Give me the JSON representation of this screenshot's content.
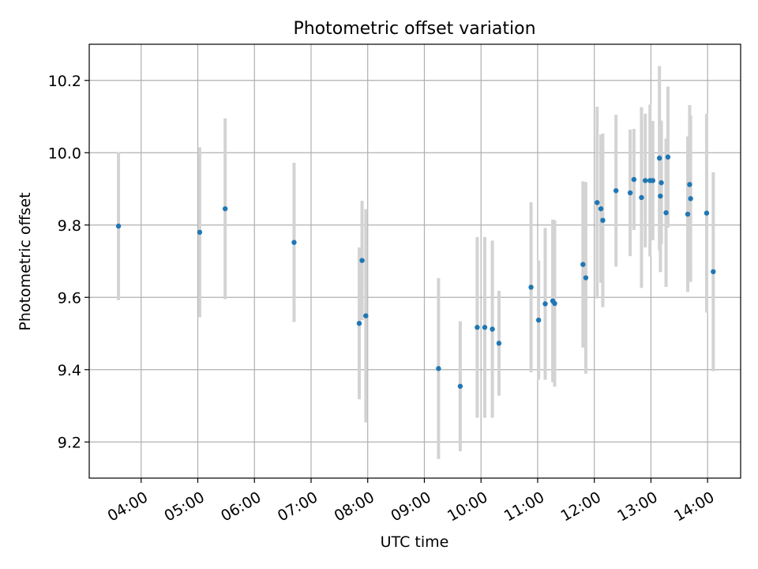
{
  "chart_data": {
    "type": "scatter",
    "title": "Photometric offset variation",
    "xlabel": "UTC time",
    "ylabel": "Photometric offset",
    "x_ticks": [
      "04:00",
      "05:00",
      "06:00",
      "07:00",
      "08:00",
      "09:00",
      "10:00",
      "11:00",
      "12:00",
      "13:00",
      "14:00"
    ],
    "x_range": [
      "03:05",
      "14:35"
    ],
    "y_ticks": [
      "9.2",
      "9.4",
      "9.6",
      "9.8",
      "10.0",
      "10.2"
    ],
    "ylim": [
      9.1,
      10.3
    ],
    "grid": true,
    "colors": {
      "point": "#1f77b4",
      "errorbar": "#d3d3d3",
      "grid": "#b0b0b0"
    },
    "points": [
      {
        "t": "03:36",
        "y": 9.797,
        "err": 0.205
      },
      {
        "t": "05:02",
        "y": 9.78,
        "err": 0.235
      },
      {
        "t": "05:29",
        "y": 9.845,
        "err": 0.25
      },
      {
        "t": "06:42",
        "y": 9.752,
        "err": 0.22
      },
      {
        "t": "07:51",
        "y": 9.528,
        "err": 0.21
      },
      {
        "t": "07:54",
        "y": 9.702,
        "err": 0.165
      },
      {
        "t": "07:58",
        "y": 9.549,
        "err": 0.295
      },
      {
        "t": "09:15",
        "y": 9.403,
        "err": 0.25
      },
      {
        "t": "09:38",
        "y": 9.354,
        "err": 0.18
      },
      {
        "t": "09:56",
        "y": 9.517,
        "err": 0.25
      },
      {
        "t": "10:04",
        "y": 9.517,
        "err": 0.25
      },
      {
        "t": "10:12",
        "y": 9.512,
        "err": 0.245
      },
      {
        "t": "10:19",
        "y": 9.473,
        "err": 0.145
      },
      {
        "t": "10:53",
        "y": 9.628,
        "err": 0.235
      },
      {
        "t": "11:01",
        "y": 9.537,
        "err": 0.165
      },
      {
        "t": "11:08",
        "y": 9.582,
        "err": 0.21
      },
      {
        "t": "11:16",
        "y": 9.59,
        "err": 0.225
      },
      {
        "t": "11:18",
        "y": 9.583,
        "err": 0.23
      },
      {
        "t": "11:48",
        "y": 9.691,
        "err": 0.23
      },
      {
        "t": "11:51",
        "y": 9.654,
        "err": 0.265
      },
      {
        "t": "12:03",
        "y": 9.862,
        "err": 0.265
      },
      {
        "t": "12:07",
        "y": 9.845,
        "err": 0.205
      },
      {
        "t": "12:09",
        "y": 9.813,
        "err": 0.24
      },
      {
        "t": "12:23",
        "y": 9.895,
        "err": 0.21
      },
      {
        "t": "12:38",
        "y": 9.889,
        "err": 0.175
      },
      {
        "t": "12:42",
        "y": 9.926,
        "err": 0.14
      },
      {
        "t": "12:50",
        "y": 9.876,
        "err": 0.25
      },
      {
        "t": "12:54",
        "y": 9.923,
        "err": 0.185
      },
      {
        "t": "12:59",
        "y": 9.923,
        "err": 0.21
      },
      {
        "t": "13:02",
        "y": 9.923,
        "err": 0.165
      },
      {
        "t": "13:09",
        "y": 9.985,
        "err": 0.255
      },
      {
        "t": "13:10",
        "y": 9.88,
        "err": 0.21
      },
      {
        "t": "13:11",
        "y": 9.917,
        "err": 0.17
      },
      {
        "t": "13:16",
        "y": 9.834,
        "err": 0.205
      },
      {
        "t": "13:18",
        "y": 9.988,
        "err": 0.195
      },
      {
        "t": "13:39",
        "y": 9.83,
        "err": 0.215
      },
      {
        "t": "13:41",
        "y": 9.912,
        "err": 0.22
      },
      {
        "t": "13:42",
        "y": 9.873,
        "err": 0.23
      },
      {
        "t": "13:59",
        "y": 9.833,
        "err": 0.275
      },
      {
        "t": "14:06",
        "y": 9.671,
        "err": 0.275
      }
    ]
  }
}
